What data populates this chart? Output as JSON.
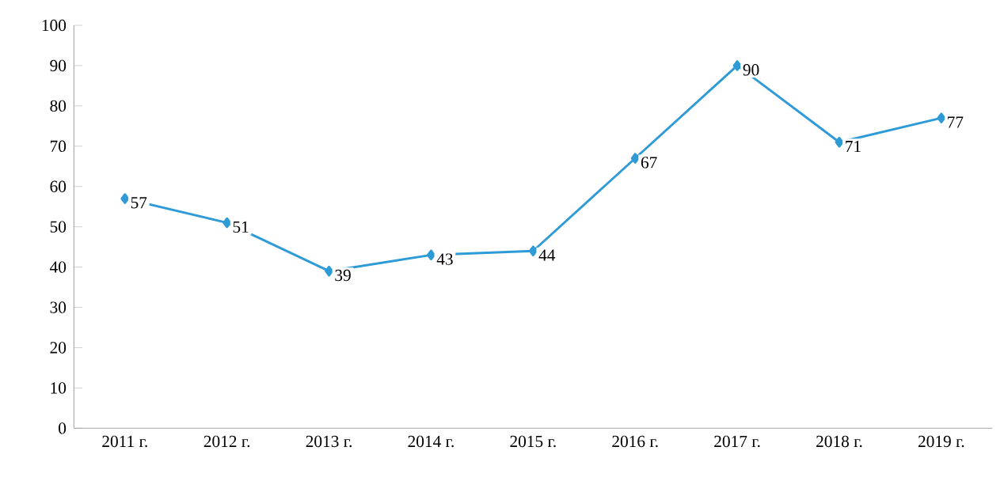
{
  "chart_data": {
    "type": "line",
    "categories": [
      "2011 г.",
      "2012 г.",
      "2013 г.",
      "2014 г.",
      "2015 г.",
      "2016 г.",
      "2017 г.",
      "2018 г.",
      "2019 г."
    ],
    "values": [
      57,
      51,
      39,
      43,
      44,
      67,
      90,
      71,
      77
    ],
    "color": "#2e9bd6",
    "ylim": [
      0,
      100
    ],
    "yticks": [
      0,
      10,
      20,
      30,
      40,
      50,
      60,
      70,
      80,
      90,
      100
    ],
    "marker": "diamond",
    "line_style": "solid",
    "data_labels": true,
    "grid": false
  }
}
